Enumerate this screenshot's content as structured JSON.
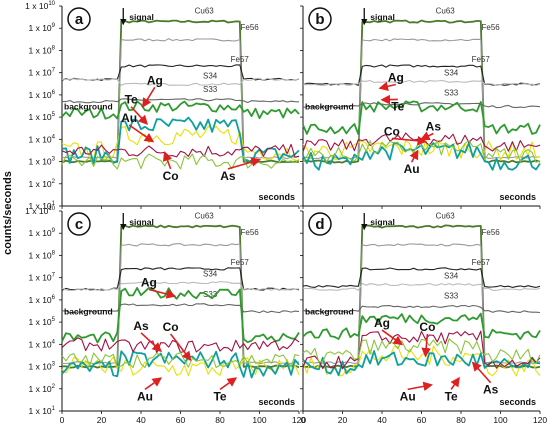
{
  "chart_data": {
    "type": "line",
    "ylabel": "counts/seconds",
    "y_scale": "log",
    "ylim": [
      10,
      10000000000
    ],
    "xlim": [
      0,
      120
    ],
    "x_ticks": [
      "0",
      "20",
      "40",
      "60",
      "80",
      "100",
      "120"
    ],
    "y_ticks": [
      {
        "mant": "1 x 10",
        "exp": "1"
      },
      {
        "mant": "1 x 10",
        "exp": "2"
      },
      {
        "mant": "1 x 10",
        "exp": "3"
      },
      {
        "mant": "1 x 10",
        "exp": "4"
      },
      {
        "mant": "1 x 10",
        "exp": "5"
      },
      {
        "mant": "1 x 10",
        "exp": "6"
      },
      {
        "mant": "1 x 10",
        "exp": "7"
      },
      {
        "mant": "1 x 10",
        "exp": "8"
      },
      {
        "mant": "1 x 10",
        "exp": "9"
      },
      {
        "mant": "1 x 10",
        "exp": "10"
      }
    ],
    "colors": {
      "Cu63": "#4a7a2a",
      "Fe56": "#999999",
      "Fe57": "#222222",
      "S34": "#bbbbbb",
      "S33": "#666666",
      "Ag": "#2f9a2f",
      "Te": "#e8e000",
      "Au": "#109f9f",
      "Co": "#a01040",
      "As": "#8ac43a",
      "arrow": "#e02020"
    },
    "common": {
      "signal_label": "signal",
      "background_label": "background",
      "seconds_label": "seconds",
      "signal_start": 30,
      "signal_end": 90
    },
    "panels": [
      {
        "label": "a",
        "series": [
          {
            "name": "Cu63",
            "bg": 1000,
            "sig": 2000000000
          },
          {
            "name": "Fe56",
            "bg": 1500,
            "sig": 300000000
          },
          {
            "name": "Fe57",
            "bg": 5000000,
            "sig": 20000000
          },
          {
            "name": "S34",
            "bg": 5000000,
            "sig": 3000000
          },
          {
            "name": "S33",
            "bg": 500000,
            "sig": 600000
          },
          {
            "name": "Ag",
            "bg": 150000,
            "sig": 300000
          },
          {
            "name": "Te",
            "bg": 3000,
            "sig": 15000
          },
          {
            "name": "Au",
            "bg": 2000,
            "sig": 40000
          },
          {
            "name": "Co",
            "bg": 3000,
            "sig": 3000
          },
          {
            "name": "As",
            "bg": 1000,
            "sig": 1000
          }
        ],
        "element_labels": [
          {
            "text": "Ag",
            "x": 47,
            "y": 3000000,
            "ax": 41,
            "ay": 300000
          },
          {
            "text": "Te",
            "x": 35,
            "y": 400000,
            "ax": 43,
            "ay": 50000
          },
          {
            "text": "Au",
            "x": 34,
            "y": 60000,
            "ax": 46,
            "ay": 8000
          },
          {
            "text": "Co",
            "x": 55,
            "y": 150,
            "ax": 52,
            "ay": 2500
          },
          {
            "text": "As",
            "x": 84,
            "y": 150,
            "ax": 100,
            "ay": 1200
          }
        ]
      },
      {
        "label": "b",
        "series": [
          {
            "name": "Cu63",
            "bg": 1000,
            "sig": 2000000000
          },
          {
            "name": "Fe56",
            "bg": 1500,
            "sig": 300000000
          },
          {
            "name": "Fe57",
            "bg": 3000000,
            "sig": 20000000
          },
          {
            "name": "S34",
            "bg": 3000000,
            "sig": 4000000
          },
          {
            "name": "S33",
            "bg": 300000,
            "sig": 400000
          },
          {
            "name": "Ag",
            "bg": 30000,
            "sig": 300000
          },
          {
            "name": "Te",
            "bg": 3000,
            "sig": 4000
          },
          {
            "name": "Au",
            "bg": 1000,
            "sig": 3000
          },
          {
            "name": "Co",
            "bg": 5000,
            "sig": 10000
          },
          {
            "name": "As",
            "bg": 2000,
            "sig": 4000
          }
        ],
        "element_labels": [
          {
            "text": "Ag",
            "x": 47,
            "y": 4000000,
            "ax": 39,
            "ay": 2000000
          },
          {
            "text": "Te",
            "x": 48,
            "y": 200000,
            "ax": 40,
            "ay": 600000
          },
          {
            "text": "Co",
            "x": 45,
            "y": 15000,
            "ax": 62,
            "ay": 8000
          },
          {
            "text": "As",
            "x": 66,
            "y": 25000,
            "ax": 60,
            "ay": 10000
          },
          {
            "text": "Au",
            "x": 55,
            "y": 300,
            "ax": 58,
            "ay": 3000
          }
        ]
      },
      {
        "label": "c",
        "series": [
          {
            "name": "Cu63",
            "bg": 1000,
            "sig": 2000000000
          },
          {
            "name": "Fe56",
            "bg": 1500,
            "sig": 300000000
          },
          {
            "name": "Fe57",
            "bg": 3000000,
            "sig": 25000000
          },
          {
            "name": "S34",
            "bg": 3000000,
            "sig": 6000000
          },
          {
            "name": "S33",
            "bg": 300000,
            "sig": 600000
          },
          {
            "name": "Ag",
            "bg": 20000,
            "sig": 2000000
          },
          {
            "name": "Te",
            "bg": 1000,
            "sig": 800
          },
          {
            "name": "Au",
            "bg": 800,
            "sig": 2000
          },
          {
            "name": "Co",
            "bg": 10000,
            "sig": 8000
          },
          {
            "name": "As",
            "bg": 2000,
            "sig": 2000
          }
        ],
        "element_labels": [
          {
            "text": "Ag",
            "x": 44,
            "y": 4000000,
            "ax": 57,
            "ay": 1500000
          },
          {
            "text": "As",
            "x": 40,
            "y": 45000,
            "ax": 50,
            "ay": 5000
          },
          {
            "text": "Co",
            "x": 55,
            "y": 40000,
            "ax": 65,
            "ay": 2000
          },
          {
            "text": "Au",
            "x": 42,
            "y": 30,
            "ax": 50,
            "ay": 300
          },
          {
            "text": "Te",
            "x": 80,
            "y": 30,
            "ax": 88,
            "ay": 300
          }
        ]
      },
      {
        "label": "d",
        "series": [
          {
            "name": "Cu63",
            "bg": 1000,
            "sig": 2000000000
          },
          {
            "name": "Fe56",
            "bg": 1500,
            "sig": 300000000
          },
          {
            "name": "Fe57",
            "bg": 4000000,
            "sig": 25000000
          },
          {
            "name": "S34",
            "bg": 3000000,
            "sig": 5000000
          },
          {
            "name": "S33",
            "bg": 300000,
            "sig": 500000
          },
          {
            "name": "Ag",
            "bg": 30000,
            "sig": 150000
          },
          {
            "name": "Te",
            "bg": 1000,
            "sig": 3000
          },
          {
            "name": "Au",
            "bg": 1000,
            "sig": 2000
          },
          {
            "name": "Co",
            "bg": 1500,
            "sig": 20000
          },
          {
            "name": "As",
            "bg": 3000,
            "sig": 8000
          }
        ],
        "element_labels": [
          {
            "text": "Ag",
            "x": 40,
            "y": 60000,
            "ax": 50,
            "ay": 10000
          },
          {
            "text": "Co",
            "x": 63,
            "y": 40000,
            "ax": 62,
            "ay": 3000
          },
          {
            "text": "Au",
            "x": 53,
            "y": 30,
            "ax": 65,
            "ay": 150
          },
          {
            "text": "Te",
            "x": 75,
            "y": 30,
            "ax": 79,
            "ay": 300
          },
          {
            "text": "As",
            "x": 95,
            "y": 60,
            "ax": 86,
            "ay": 1500
          }
        ]
      }
    ]
  }
}
